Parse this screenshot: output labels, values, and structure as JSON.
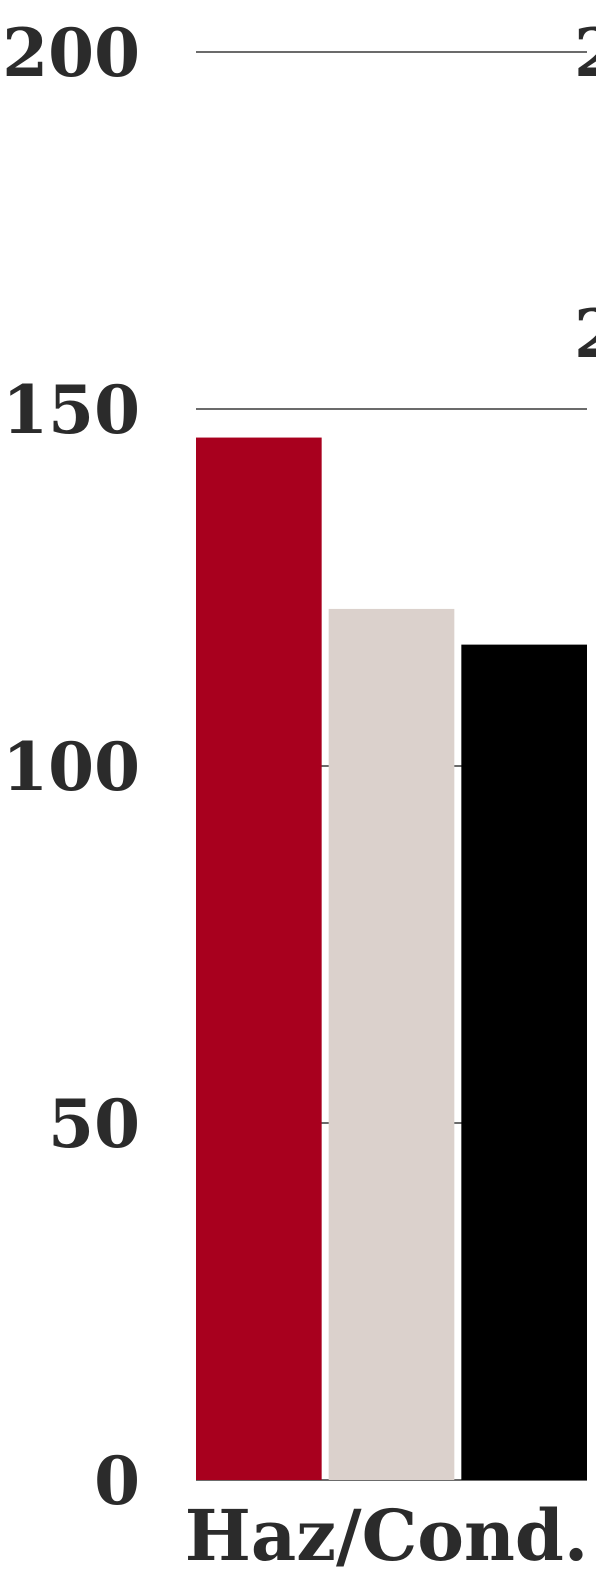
{
  "chart_data": {
    "type": "bar",
    "categories": [
      "Haz/Cond."
    ],
    "series": [
      {
        "values": [
          146
        ],
        "color": "#a8001e"
      },
      {
        "values": [
          122
        ],
        "color": "#dbd1cc"
      },
      {
        "values": [
          117
        ],
        "color": "#000000"
      }
    ],
    "y_ticks": [
      "0",
      "50",
      "100",
      "150",
      "200"
    ],
    "ylim": [
      0,
      200
    ],
    "grid": true,
    "cropped_tick_labels_right": [
      "2",
      "2"
    ]
  }
}
